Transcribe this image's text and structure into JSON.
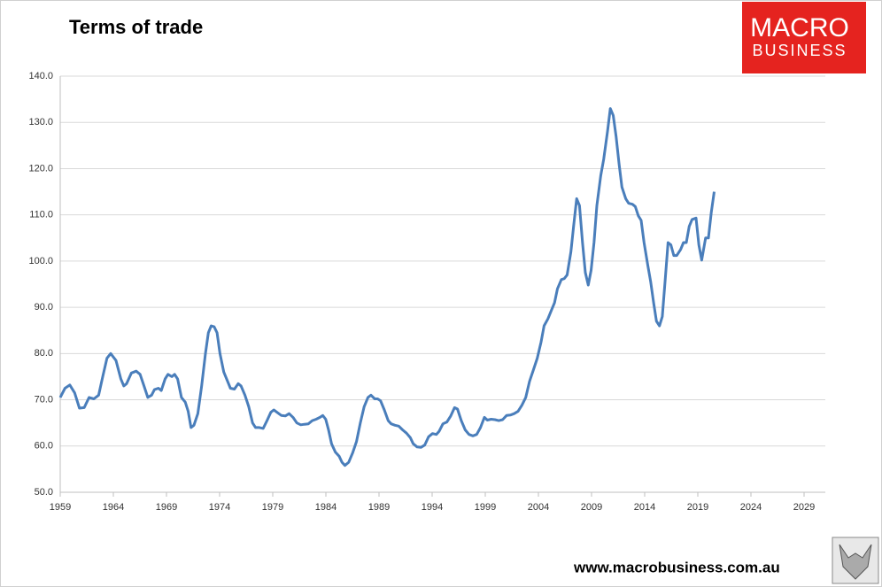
{
  "chart_data": {
    "type": "line",
    "title": "Terms of trade",
    "logo": [
      "MACRO",
      "BUSINESS"
    ],
    "footer": "www.macrobusiness.com.au",
    "xlim": [
      1959,
      2031
    ],
    "xticks": [
      1959,
      1964,
      1969,
      1974,
      1979,
      1984,
      1989,
      1994,
      1999,
      2004,
      2009,
      2014,
      2019,
      2024,
      2029
    ],
    "ylim": [
      50,
      140
    ],
    "yticks": [
      {
        "value": 50,
        "label": "50.0"
      },
      {
        "value": 60,
        "label": "60.0"
      },
      {
        "value": 70,
        "label": "70.0"
      },
      {
        "value": 80,
        "label": "80.0"
      },
      {
        "value": 90,
        "label": "90.0"
      },
      {
        "value": 100,
        "label": "100.0"
      },
      {
        "value": 110,
        "label": "110.0"
      },
      {
        "value": 120,
        "label": "120.0"
      },
      {
        "value": 130,
        "label": "130.0"
      },
      {
        "value": 140,
        "label": "140.0"
      }
    ],
    "grid": true,
    "x": [
      1959.0,
      1959.45,
      1959.9,
      1960.36,
      1960.81,
      1961.26,
      1961.72,
      1962.17,
      1962.62,
      1963.0,
      1963.4,
      1963.75,
      1964.25,
      1964.71,
      1964.98,
      1965.25,
      1965.7,
      1966.15,
      1966.52,
      1966.88,
      1967.24,
      1967.6,
      1967.87,
      1968.24,
      1968.51,
      1968.87,
      1969.14,
      1969.5,
      1969.77,
      1970.05,
      1970.41,
      1970.77,
      1971.04,
      1971.31,
      1971.58,
      1971.95,
      1972.31,
      1972.67,
      1972.94,
      1973.21,
      1973.48,
      1973.76,
      1974.03,
      1974.39,
      1974.75,
      1975.02,
      1975.39,
      1975.75,
      1976.02,
      1976.38,
      1976.74,
      1977.1,
      1977.38,
      1977.74,
      1978.1,
      1978.46,
      1978.82,
      1979.1,
      1979.46,
      1979.82,
      1980.18,
      1980.54,
      1980.91,
      1981.27,
      1981.63,
      1981.99,
      1982.35,
      1982.72,
      1983.08,
      1983.44,
      1983.71,
      1983.98,
      1984.25,
      1984.53,
      1984.89,
      1985.25,
      1985.52,
      1985.79,
      1986.15,
      1986.52,
      1986.88,
      1987.24,
      1987.6,
      1987.96,
      1988.24,
      1988.6,
      1988.87,
      1989.14,
      1989.5,
      1989.87,
      1990.14,
      1990.5,
      1990.86,
      1991.22,
      1991.58,
      1991.95,
      1992.22,
      1992.58,
      1992.94,
      1993.3,
      1993.67,
      1994.03,
      1994.39,
      1994.66,
      1995.02,
      1995.39,
      1995.75,
      1996.11,
      1996.38,
      1996.74,
      1997.11,
      1997.47,
      1997.83,
      1998.19,
      1998.55,
      1998.92,
      1999.19,
      1999.55,
      1999.91,
      2000.27,
      2000.63,
      2001.0,
      2001.36,
      2001.72,
      2002.08,
      2002.44,
      2002.81,
      2003.17,
      2003.53,
      2003.89,
      2004.25,
      2004.53,
      2004.89,
      2005.25,
      2005.52,
      2005.79,
      2006.16,
      2006.43,
      2006.7,
      2007.06,
      2007.33,
      2007.6,
      2007.87,
      2008.15,
      2008.42,
      2008.69,
      2008.96,
      2009.23,
      2009.5,
      2009.87,
      2010.14,
      2010.5,
      2010.77,
      2011.04,
      2011.31,
      2011.59,
      2011.86,
      2012.22,
      2012.49,
      2012.85,
      2013.12,
      2013.4,
      2013.67,
      2013.94,
      2014.3,
      2014.57,
      2014.84,
      2015.11,
      2015.39,
      2015.66,
      2015.93,
      2016.2,
      2016.47,
      2016.74,
      2017.02,
      2017.38,
      2017.65,
      2017.92,
      2018.19,
      2018.46,
      2018.83,
      2019.1,
      2019.37,
      2019.73,
      2020.0,
      2020.27,
      2020.54
    ],
    "series": [
      {
        "color": "#4a7ebb",
        "values": [
          70.5,
          72.5,
          73.2,
          71.5,
          68.2,
          68.3,
          70.5,
          70.2,
          71.0,
          75,
          79,
          80,
          78.5,
          74.5,
          73,
          73.5,
          75.8,
          76.2,
          75.5,
          73,
          70.5,
          71,
          72.2,
          72.5,
          72,
          74.5,
          75.5,
          75,
          75.5,
          74.5,
          70.5,
          69.5,
          67.5,
          64,
          64.5,
          67,
          73,
          80,
          84.5,
          86,
          85.8,
          84.5,
          80,
          76,
          74,
          72.5,
          72.3,
          73.5,
          73,
          71,
          68.5,
          65,
          64,
          64,
          63.8,
          65.5,
          67.3,
          67.8,
          67.2,
          66.6,
          66.5,
          67,
          66.2,
          65,
          64.6,
          64.7,
          64.8,
          65.5,
          65.8,
          66.2,
          66.6,
          65.8,
          63.5,
          60.5,
          58.7,
          57.8,
          56.5,
          55.8,
          56.5,
          58.5,
          61,
          65,
          68.5,
          70.5,
          71,
          70.2,
          70.2,
          69.8,
          67.8,
          65.5,
          64.8,
          64.5,
          64.3,
          63.5,
          62.8,
          61.8,
          60.5,
          59.8,
          59.7,
          60.2,
          62.0,
          62.7,
          62.5,
          63.2,
          64.8,
          65.2,
          66.5,
          68.3,
          68.0,
          65.5,
          63.5,
          62.5,
          62.2,
          62.5,
          64,
          66.2,
          65.6,
          65.8,
          65.7,
          65.5,
          65.7,
          66.6,
          66.7,
          67,
          67.5,
          68.8,
          70.5,
          74,
          76.5,
          79,
          82.5,
          86,
          87.5,
          89.5,
          91,
          94,
          96,
          96.2,
          97,
          102,
          108,
          113.5,
          112,
          104,
          97.5,
          94.8,
          98,
          104,
          112,
          118.5,
          122,
          128,
          133,
          131.5,
          127,
          121,
          116,
          113.5,
          112.5,
          112.3,
          111.8,
          109.8,
          108.8,
          104,
          99,
          95.5,
          91,
          87,
          86,
          88,
          96,
          104,
          103.5,
          101.2,
          101.2,
          102.5,
          104,
          104,
          107.5,
          109,
          109.3,
          103.5,
          100.2,
          105,
          105,
          110.5,
          115
        ]
      }
    ]
  }
}
